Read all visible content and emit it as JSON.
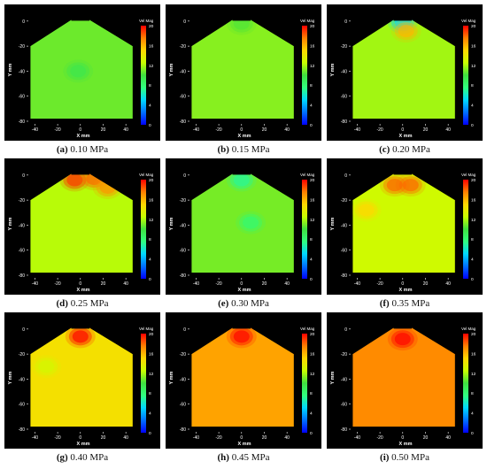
{
  "colors": {
    "colormap": [
      "#0000ff",
      "#0070ff",
      "#00d8ff",
      "#30ff80",
      "#40e040",
      "#c8ff00",
      "#ffd800",
      "#ff8000",
      "#ff0000"
    ],
    "background": "#000000",
    "axis_text": "#ffffff"
  },
  "chart_data": [
    {
      "type": "heatmap",
      "caption_label": "(a)",
      "caption_value": "0.10 MPa",
      "xlabel": "X mm",
      "ylabel": "Y mm",
      "legend_title": "Vel Mag",
      "xticks": [
        "-40",
        "-20",
        "0",
        "20",
        "40"
      ],
      "yticks": [
        "0",
        "-20",
        "-40",
        "-60",
        "-80"
      ],
      "cbar_ticks": [
        "20",
        "16",
        "12",
        "8",
        "4",
        "0"
      ],
      "xlim": [
        -45,
        50
      ],
      "ylim": [
        -80,
        2
      ],
      "clim": [
        0,
        20
      ],
      "base_velocity": 10.8,
      "hotspots": [
        {
          "x": -2,
          "y": -40,
          "v": 9.5
        }
      ]
    },
    {
      "type": "heatmap",
      "caption_label": "(b)",
      "caption_value": "0.15 MPa",
      "xlabel": "X mm",
      "ylabel": "Y mm",
      "legend_title": "Vel Mag",
      "xticks": [
        "-40",
        "-20",
        "0",
        "20",
        "40"
      ],
      "yticks": [
        "0",
        "-20",
        "-40",
        "-60",
        "-80"
      ],
      "cbar_ticks": [
        "20",
        "16",
        "12",
        "8",
        "4",
        "0"
      ],
      "xlim": [
        -45,
        50
      ],
      "ylim": [
        -80,
        2
      ],
      "clim": [
        0,
        20
      ],
      "base_velocity": 11.3,
      "hotspots": [
        {
          "x": 0,
          "y": -2,
          "v": 10.3
        }
      ]
    },
    {
      "type": "heatmap",
      "caption_label": "(c)",
      "caption_value": "0.20 MPa",
      "xlabel": "X mm",
      "ylabel": "Y mm",
      "legend_title": "Vel Mag",
      "xticks": [
        "-40",
        "-20",
        "0",
        "20",
        "40"
      ],
      "yticks": [
        "0",
        "-20",
        "-40",
        "-60",
        "-80"
      ],
      "cbar_ticks": [
        "20",
        "16",
        "12",
        "8",
        "4",
        "0"
      ],
      "xlim": [
        -45,
        50
      ],
      "ylim": [
        -80,
        2
      ],
      "clim": [
        0,
        20
      ],
      "base_velocity": 11.8,
      "hotspots": [
        {
          "x": 0,
          "y": -1,
          "v": 5
        },
        {
          "x": 3,
          "y": -8,
          "v": 16
        }
      ]
    },
    {
      "type": "heatmap",
      "caption_label": "(d)",
      "caption_value": "0.25 MPa",
      "xlabel": "X mm",
      "ylabel": "Y mm",
      "legend_title": "Vel Mag",
      "xticks": [
        "-40",
        "-20",
        "0",
        "20",
        "40"
      ],
      "yticks": [
        "0",
        "-20",
        "-40",
        "-60",
        "-80"
      ],
      "cbar_ticks": [
        "20",
        "16",
        "12",
        "8",
        "4",
        "0"
      ],
      "xlim": [
        -45,
        50
      ],
      "ylim": [
        -80,
        2
      ],
      "clim": [
        0,
        20
      ],
      "base_velocity": 12.2,
      "hotspots": [
        {
          "x": -5,
          "y": -4,
          "v": 19
        },
        {
          "x": 12,
          "y": -3,
          "v": 18
        },
        {
          "x": 24,
          "y": -10,
          "v": 17
        }
      ]
    },
    {
      "type": "heatmap",
      "caption_label": "(e)",
      "caption_value": "0.30 MPa",
      "xlabel": "X mm",
      "ylabel": "Y mm",
      "legend_title": "Vel Mag",
      "xticks": [
        "-40",
        "-20",
        "0",
        "20",
        "40"
      ],
      "yticks": [
        "0",
        "-20",
        "-40",
        "-60",
        "-80"
      ],
      "cbar_ticks": [
        "20",
        "16",
        "12",
        "8",
        "4",
        "0"
      ],
      "xlim": [
        -45,
        50
      ],
      "ylim": [
        -80,
        2
      ],
      "clim": [
        0,
        20
      ],
      "base_velocity": 11.0,
      "hotspots": [
        {
          "x": 0,
          "y": -4,
          "v": 7
        },
        {
          "x": 8,
          "y": -38,
          "v": 8
        }
      ]
    },
    {
      "type": "heatmap",
      "caption_label": "(f)",
      "caption_value": "0.35 MPa",
      "xlabel": "X mm",
      "ylabel": "Y mm",
      "legend_title": "Vel Mag",
      "xticks": [
        "-40",
        "-20",
        "0",
        "20",
        "40"
      ],
      "yticks": [
        "0",
        "-20",
        "-40",
        "-60",
        "-80"
      ],
      "cbar_ticks": [
        "20",
        "16",
        "12",
        "8",
        "4",
        "0"
      ],
      "xlim": [
        -45,
        50
      ],
      "ylim": [
        -80,
        2
      ],
      "clim": [
        0,
        20
      ],
      "base_velocity": 12.8,
      "hotspots": [
        {
          "x": -7,
          "y": -8,
          "v": 18
        },
        {
          "x": 7,
          "y": -8,
          "v": 18
        },
        {
          "x": -32,
          "y": -28,
          "v": 15
        }
      ]
    },
    {
      "type": "heatmap",
      "caption_label": "(g)",
      "caption_value": "0.40 MPa",
      "xlabel": "X mm",
      "ylabel": "Y mm",
      "legend_title": "Vel Mag",
      "xticks": [
        "-40",
        "-20",
        "0",
        "20",
        "40"
      ],
      "yticks": [
        "0",
        "-20",
        "-40",
        "-60",
        "-80"
      ],
      "cbar_ticks": [
        "20",
        "16",
        "12",
        "8",
        "4",
        "0"
      ],
      "xlim": [
        -45,
        50
      ],
      "ylim": [
        -80,
        2
      ],
      "clim": [
        0,
        20
      ],
      "base_velocity": 14.5,
      "hotspots": [
        {
          "x": 0,
          "y": -6,
          "v": 20
        },
        {
          "x": -30,
          "y": -30,
          "v": 13
        }
      ]
    },
    {
      "type": "heatmap",
      "caption_label": "(h)",
      "caption_value": "0.45 MPa",
      "xlabel": "X mm",
      "ylabel": "Y mm",
      "legend_title": "Vel Mag",
      "xticks": [
        "-40",
        "-20",
        "0",
        "20",
        "40"
      ],
      "yticks": [
        "0",
        "-20",
        "-40",
        "-60",
        "-80"
      ],
      "cbar_ticks": [
        "20",
        "16",
        "12",
        "8",
        "4",
        "0"
      ],
      "xlim": [
        -45,
        50
      ],
      "ylim": [
        -80,
        2
      ],
      "clim": [
        0,
        20
      ],
      "base_velocity": 16.5,
      "hotspots": [
        {
          "x": 0,
          "y": -6,
          "v": 20
        }
      ]
    },
    {
      "type": "heatmap",
      "caption_label": "(i)",
      "caption_value": "0.50 MPa",
      "xlabel": "X mm",
      "ylabel": "Y mm",
      "legend_title": "Vel Mag",
      "xticks": [
        "-40",
        "-20",
        "0",
        "20",
        "40"
      ],
      "yticks": [
        "0",
        "-20",
        "-40",
        "-60",
        "-80"
      ],
      "cbar_ticks": [
        "20",
        "16",
        "12",
        "8",
        "4",
        "0"
      ],
      "xlim": [
        -45,
        50
      ],
      "ylim": [
        -80,
        2
      ],
      "clim": [
        0,
        20
      ],
      "base_velocity": 17.2,
      "hotspots": [
        {
          "x": 0,
          "y": -8,
          "v": 20
        }
      ]
    }
  ]
}
